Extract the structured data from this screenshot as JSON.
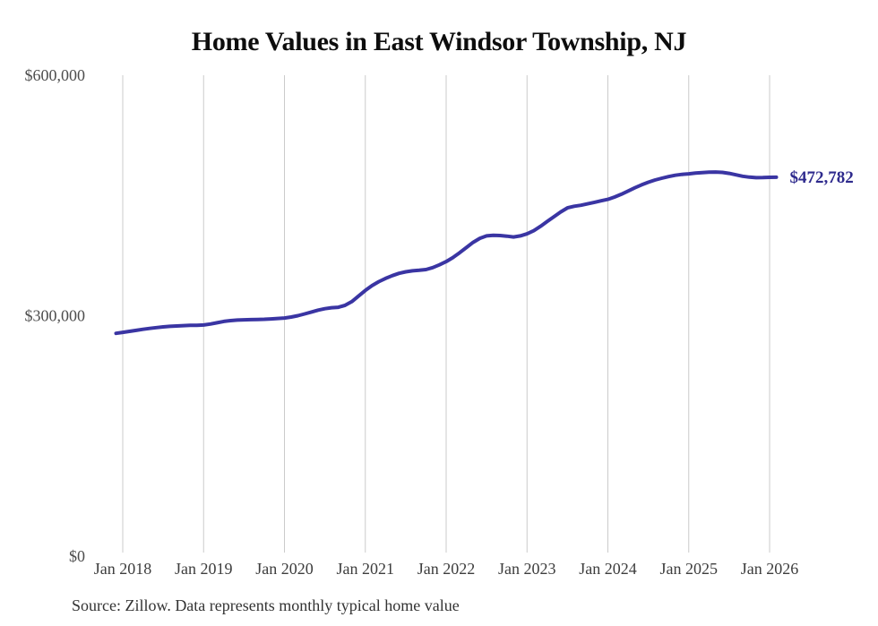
{
  "title": "Home Values in East Windsor Township, NJ",
  "source_note": "Source: Zillow. Data represents monthly typical home value",
  "colors": {
    "line": "#3a35a3",
    "end_label": "#2e2a8d",
    "gridline": "#cbcbcb",
    "title": "#0d0d0d",
    "x_tick": "#3d3d3d",
    "y_tick": "#4d4d4d",
    "source": "#333333",
    "background": "#ffffff"
  },
  "chart_data": {
    "type": "line",
    "title": "Home Values in East Windsor Township, NJ",
    "xlabel": "",
    "ylabel": "",
    "ylim": [
      0,
      600000
    ],
    "y_tick_values": [
      0,
      300000,
      600000
    ],
    "y_tick_labels": [
      "$0",
      "$300,000",
      "$600,000"
    ],
    "x_tick_labels": [
      "Jan 2018",
      "Jan 2019",
      "Jan 2020",
      "Jan 2021",
      "Jan 2022",
      "Jan 2023",
      "Jan 2024",
      "Jan 2025",
      "Jan 2026"
    ],
    "grid": "vertical-only",
    "legend": "none",
    "final_value": 472782,
    "final_value_label": "$472,782",
    "series": [
      {
        "name": "Typical home value (USD, monthly)",
        "months": [
          "2017-12",
          "2018-01",
          "2018-02",
          "2018-03",
          "2018-04",
          "2018-05",
          "2018-06",
          "2018-07",
          "2018-08",
          "2018-09",
          "2018-10",
          "2018-11",
          "2018-12",
          "2019-01",
          "2019-02",
          "2019-03",
          "2019-04",
          "2019-05",
          "2019-06",
          "2019-07",
          "2019-08",
          "2019-09",
          "2019-10",
          "2019-11",
          "2019-12",
          "2020-01",
          "2020-02",
          "2020-03",
          "2020-04",
          "2020-05",
          "2020-06",
          "2020-07",
          "2020-08",
          "2020-09",
          "2020-10",
          "2020-11",
          "2020-12",
          "2021-01",
          "2021-02",
          "2021-03",
          "2021-04",
          "2021-05",
          "2021-06",
          "2021-07",
          "2021-08",
          "2021-09",
          "2021-10",
          "2021-11",
          "2021-12",
          "2022-01",
          "2022-02",
          "2022-03",
          "2022-04",
          "2022-05",
          "2022-06",
          "2022-07",
          "2022-08",
          "2022-09",
          "2022-10",
          "2022-11",
          "2022-12",
          "2023-01",
          "2023-02",
          "2023-03",
          "2023-04",
          "2023-05",
          "2023-06",
          "2023-07",
          "2023-08",
          "2023-09",
          "2023-10",
          "2023-11",
          "2023-12",
          "2024-01",
          "2024-02",
          "2024-03",
          "2024-04",
          "2024-05",
          "2024-06",
          "2024-07",
          "2024-08",
          "2024-09",
          "2024-10",
          "2024-11",
          "2024-12",
          "2025-01",
          "2025-02",
          "2025-03",
          "2025-04",
          "2025-05",
          "2025-06",
          "2025-07",
          "2025-08",
          "2025-09",
          "2025-10",
          "2025-11",
          "2025-12",
          "2026-01",
          "2026-02"
        ],
        "values": [
          278000,
          279200,
          280400,
          281700,
          283000,
          284100,
          285100,
          286000,
          286700,
          287200,
          287600,
          287900,
          288100,
          288400,
          289600,
          291200,
          292800,
          293900,
          294500,
          294900,
          295100,
          295300,
          295500,
          296000,
          296500,
          297100,
          298300,
          300000,
          302200,
          304600,
          306900,
          308700,
          309900,
          310500,
          313000,
          317500,
          324500,
          331500,
          337500,
          342500,
          346500,
          350000,
          352800,
          354800,
          356000,
          356600,
          357500,
          360000,
          363500,
          367500,
          372500,
          378500,
          385000,
          391500,
          396500,
          399500,
          400300,
          400000,
          399200,
          398200,
          399500,
          402100,
          406000,
          411500,
          417500,
          423500,
          429500,
          434500,
          436500,
          437800,
          439500,
          441500,
          443300,
          445100,
          448000,
          451500,
          455500,
          459500,
          463200,
          466500,
          469300,
          471500,
          473500,
          475200,
          476300,
          477000,
          477900,
          478600,
          479000,
          479200,
          478800,
          477500,
          475800,
          474000,
          472800,
          472200,
          472300,
          472600,
          472782
        ]
      }
    ]
  }
}
